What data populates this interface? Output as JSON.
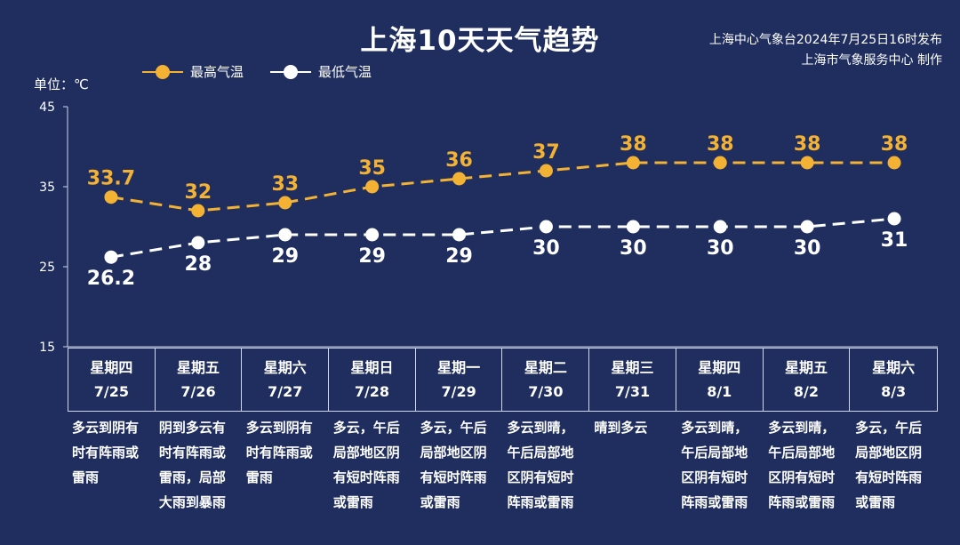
{
  "header": {
    "title": "上海10天天气趋势",
    "source_line1": "上海中心气象台2024年7月25日16时发布",
    "source_line2": "上海市气象服务中心 制作",
    "unit": "单位：℃"
  },
  "legend": {
    "high": "最高气温",
    "low": "最低气温"
  },
  "colors": {
    "background": "#1f2e5e",
    "high": "#f3b233",
    "low": "#ffffff"
  },
  "chart_data": {
    "type": "line",
    "title": "上海10天天气趋势",
    "ylabel": "单位：℃",
    "ylim": [
      15,
      45
    ],
    "yticks": [
      15,
      25,
      35,
      45
    ],
    "grid": false,
    "legend_position": "top-left",
    "categories": [
      "7/25",
      "7/26",
      "7/27",
      "7/28",
      "7/29",
      "7/30",
      "7/31",
      "8/1",
      "8/2",
      "8/3"
    ],
    "series": [
      {
        "name": "最高气温",
        "color": "#f3b233",
        "values": [
          33.7,
          32,
          33,
          35,
          36,
          37,
          38,
          38,
          38,
          38
        ],
        "labels": [
          "33.7",
          "32",
          "33",
          "35",
          "36",
          "37",
          "38",
          "38",
          "38",
          "38"
        ]
      },
      {
        "name": "最低气温",
        "color": "#ffffff",
        "values": [
          26.2,
          28,
          29,
          29,
          29,
          30,
          30,
          30,
          30,
          31
        ],
        "labels": [
          "26.2",
          "28",
          "29",
          "29",
          "29",
          "30",
          "30",
          "30",
          "30",
          "31"
        ]
      }
    ]
  },
  "days": [
    {
      "weekday": "星期四",
      "date": "7/25",
      "weather": "多云到阴有时有阵雨或雷雨"
    },
    {
      "weekday": "星期五",
      "date": "7/26",
      "weather": "阴到多云有时有阵雨或雷雨，局部大雨到暴雨"
    },
    {
      "weekday": "星期六",
      "date": "7/27",
      "weather": "多云到阴有时有阵雨或雷雨"
    },
    {
      "weekday": "星期日",
      "date": "7/28",
      "weather": "多云，午后局部地区阴有短时阵雨或雷雨"
    },
    {
      "weekday": "星期一",
      "date": "7/29",
      "weather": "多云，午后局部地区阴有短时阵雨或雷雨"
    },
    {
      "weekday": "星期二",
      "date": "7/30",
      "weather": "多云到晴，午后局部地区阴有短时阵雨或雷雨"
    },
    {
      "weekday": "星期三",
      "date": "7/31",
      "weather": "晴到多云"
    },
    {
      "weekday": "星期四",
      "date": "8/1",
      "weather": "多云到晴，午后局部地区阴有短时阵雨或雷雨"
    },
    {
      "weekday": "星期五",
      "date": "8/2",
      "weather": "多云到晴，午后局部地区阴有短时阵雨或雷雨"
    },
    {
      "weekday": "星期六",
      "date": "8/3",
      "weather": "多云，午后局部地区阴有短时阵雨或雷雨"
    }
  ]
}
